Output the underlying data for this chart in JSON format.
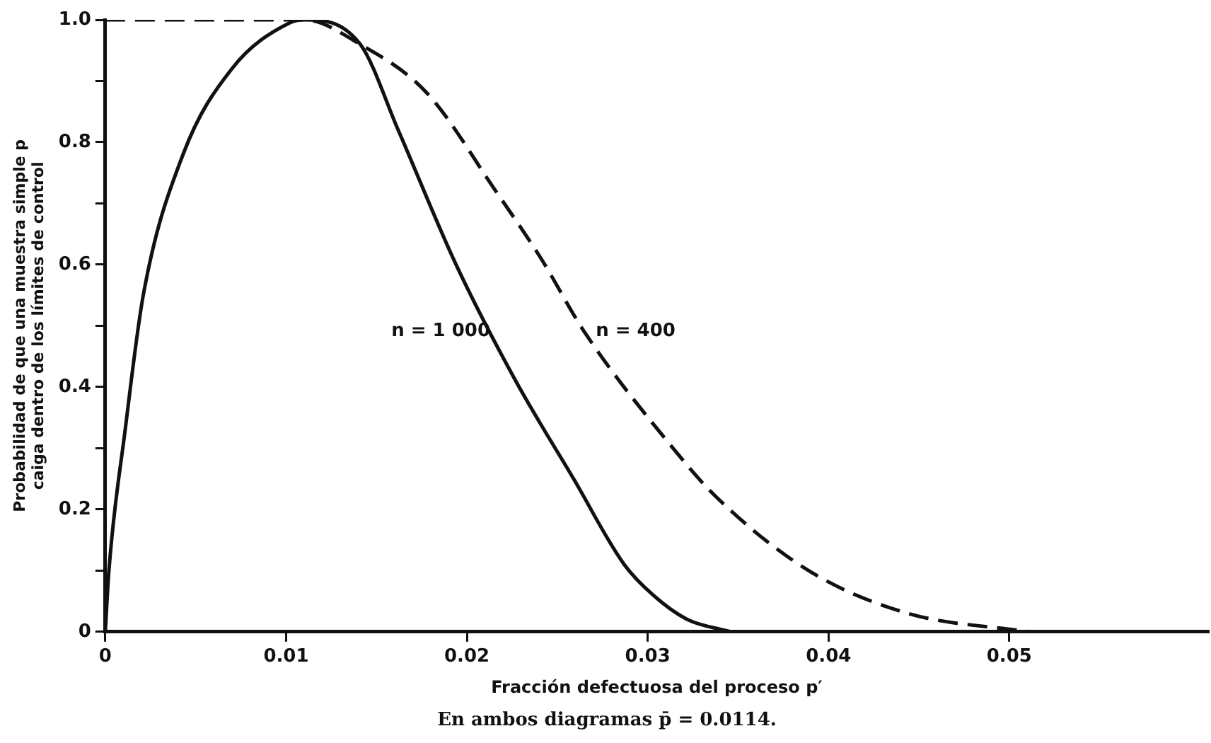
{
  "chart_data": {
    "type": "line",
    "xlabel": "Fracción defectuosa del proceso p′",
    "ylabel": "Probabilidad de que una muestra simple p\ncaiga dentro de los límites de control",
    "xlim": [
      0,
      0.061
    ],
    "xticks": [
      {
        "value": 0,
        "label": "0"
      },
      {
        "value": 0.01,
        "label": "0.01"
      },
      {
        "value": 0.02,
        "label": "0.02"
      },
      {
        "value": 0.03,
        "label": "0.03"
      },
      {
        "value": 0.04,
        "label": "0.04"
      },
      {
        "value": 0.05,
        "label": "0.05"
      }
    ],
    "ylim": [
      0,
      1
    ],
    "yticks": [
      {
        "value": 0,
        "label": "0"
      },
      {
        "value": 0.1,
        "label": null
      },
      {
        "value": 0.2,
        "label": "0.2"
      },
      {
        "value": 0.3,
        "label": null
      },
      {
        "value": 0.4,
        "label": "0.4"
      },
      {
        "value": 0.5,
        "label": null
      },
      {
        "value": 0.6,
        "label": "0.6"
      },
      {
        "value": 0.7,
        "label": null
      },
      {
        "value": 0.8,
        "label": "0.8"
      },
      {
        "value": 0.9,
        "label": null
      },
      {
        "value": 1,
        "label": "1.0"
      }
    ],
    "grid": false,
    "legend": false,
    "marker": "none",
    "series": [
      {
        "name": "n = 1 000",
        "color": "#111111",
        "line_style": "solid",
        "x": [
          0,
          0.0002,
          0.0011,
          0.0021,
          0.0043,
          0.007,
          0.0102,
          0.011,
          0.0141,
          0.0162,
          0.0194,
          0.0227,
          0.0259,
          0.0287,
          0.0303,
          0.0322,
          0.0346
        ],
        "values": [
          0,
          0.1,
          0.33,
          0.55,
          0.78,
          0.92,
          0.995,
          1,
          0.96,
          0.82,
          0.6,
          0.41,
          0.25,
          0.11,
          0.06,
          0.02,
          0
        ]
      },
      {
        "name": "n = 400",
        "color": "#111111",
        "line_style": "dashed",
        "x": [
          0,
          0.011,
          0.0141,
          0.0178,
          0.0216,
          0.0241,
          0.0265,
          0.0314,
          0.0338,
          0.0389,
          0.0444,
          0.0511
        ],
        "values": [
          1,
          1,
          0.96,
          0.88,
          0.72,
          0.61,
          0.49,
          0.3,
          0.22,
          0.1,
          0.03,
          0
        ]
      }
    ],
    "annotations": [
      "En ambos diagramas p̄ = 0.0114."
    ]
  }
}
